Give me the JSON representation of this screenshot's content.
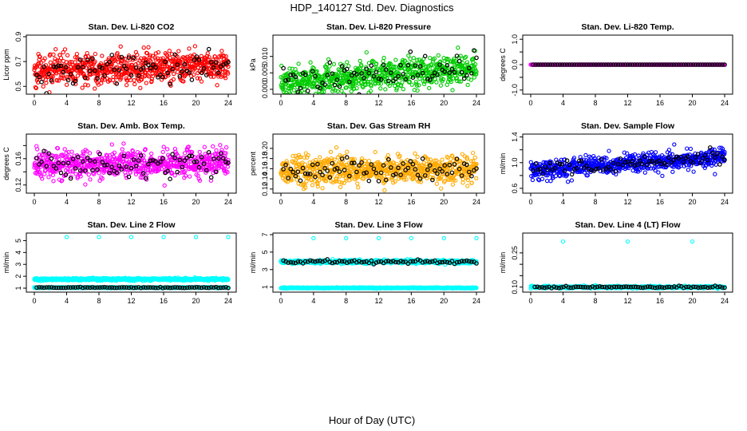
{
  "figure": {
    "title": "HDP_140127  Std. Dev. Diagnostics",
    "xlabel": "Hour of Day (UTC)"
  },
  "chart_data": [
    {
      "type": "scatter",
      "title": "Stan. Dev. Li-820 CO2",
      "ylabel": "Licor ppm",
      "xlim": [
        0,
        24
      ],
      "ylim": [
        0.45,
        0.9
      ],
      "xticks": [
        "0",
        "4",
        "8",
        "12",
        "16",
        "20",
        "24"
      ],
      "yticks": [
        0.5,
        0.7,
        0.9
      ],
      "ytick_labels": [
        "0.5",
        "0.7",
        "0.9"
      ],
      "colors": {
        "main": "#ff0000",
        "black": "#000000"
      },
      "series_gen": {
        "kind": "band",
        "start": 0.62,
        "end": 0.67,
        "spread": 0.06,
        "outlier": 0.12,
        "n": 720,
        "black_n": 80
      }
    },
    {
      "type": "scatter",
      "title": "Stan. Dev. Li-820 Pressure",
      "ylabel": "kPa",
      "xlim": [
        0,
        24
      ],
      "ylim": [
        -0.001,
        0.016
      ],
      "xticks": [
        "0",
        "4",
        "8",
        "12",
        "16",
        "20",
        "24"
      ],
      "yticks": [
        0.0,
        0.005,
        0.01
      ],
      "ytick_labels": [
        "0.000",
        "0.005",
        "0.010"
      ],
      "colors": {
        "main": "#00cc00",
        "black": "#000000"
      },
      "series_gen": {
        "kind": "band",
        "start": 0.002,
        "end": 0.0065,
        "spread": 0.0022,
        "outlier": 0.004,
        "n": 720,
        "black_n": 80
      }
    },
    {
      "type": "scatter",
      "title": "Stan. Dev. Li-820 Temp.",
      "ylabel": "degrees C",
      "xlim": [
        0,
        24
      ],
      "ylim": [
        -1.1,
        1.1
      ],
      "xticks": [
        "0",
        "4",
        "8",
        "12",
        "16",
        "20",
        "24"
      ],
      "yticks": [
        -1.0,
        -0.5,
        0.0,
        0.5,
        1.0
      ],
      "ytick_labels": [
        "-1.0",
        "",
        "0.0",
        "",
        "1.0"
      ],
      "colors": {
        "main": "#ff00ff",
        "black": "#000000"
      },
      "series_gen": {
        "kind": "flat",
        "value": 0.0,
        "n": 720,
        "black_n": 80
      }
    },
    {
      "type": "scatter",
      "title": "Stan. Dev. Amb. Box Temp.",
      "ylabel": "degrees C",
      "xlim": [
        0,
        24
      ],
      "ylim": [
        0.11,
        0.195
      ],
      "xticks": [
        "0",
        "4",
        "8",
        "12",
        "16",
        "20",
        "24"
      ],
      "yticks": [
        0.12,
        0.14,
        0.16,
        0.18
      ],
      "ytick_labels": [
        "0.12",
        "",
        "0.16",
        ""
      ],
      "colors": {
        "main": "#ff00ff",
        "black": "#000000"
      },
      "series_gen": {
        "kind": "band",
        "start": 0.152,
        "end": 0.153,
        "spread": 0.011,
        "outlier": 0.02,
        "n": 720,
        "black_n": 80
      }
    },
    {
      "type": "scatter",
      "title": "Stan. Dev. Gas Stream RH",
      "ylabel": "percent",
      "xlim": [
        0,
        24
      ],
      "ylim": [
        0.115,
        0.225
      ],
      "xticks": [
        "0",
        "4",
        "8",
        "12",
        "16",
        "20",
        "24"
      ],
      "yticks": [
        0.12,
        0.14,
        0.16,
        0.18,
        0.2
      ],
      "ytick_labels": [
        "0.12",
        "0.14",
        "0.16",
        "0.18",
        "0.20"
      ],
      "colors": {
        "main": "#ffaa00",
        "black": "#000000"
      },
      "series_gen": {
        "kind": "band",
        "start": 0.158,
        "end": 0.158,
        "spread": 0.013,
        "outlier": 0.03,
        "n": 720,
        "black_n": 80
      }
    },
    {
      "type": "scatter",
      "title": "Stan. Dev. Sample Flow",
      "ylabel": "ml/min",
      "xlim": [
        0,
        24
      ],
      "ylim": [
        0.55,
        1.42
      ],
      "xticks": [
        "0",
        "4",
        "8",
        "12",
        "16",
        "20",
        "24"
      ],
      "yticks": [
        0.6,
        0.8,
        1.0,
        1.2,
        1.4
      ],
      "ytick_labels": [
        "0.6",
        "",
        "1.0",
        "",
        "1.4"
      ],
      "colors": {
        "main": "#0000ff",
        "black": "#000000"
      },
      "series_gen": {
        "kind": "band",
        "start": 0.9,
        "end": 1.08,
        "spread": 0.07,
        "outlier": 0.2,
        "n": 720,
        "black_n": 80
      }
    },
    {
      "type": "scatter",
      "title": "Stan. Dev. Line 2 Flow",
      "ylabel": "ml/min",
      "xlim": [
        0,
        24
      ],
      "ylim": [
        0.8,
        5.5
      ],
      "xticks": [
        "0",
        "4",
        "8",
        "12",
        "16",
        "20",
        "24"
      ],
      "yticks": [
        1,
        2,
        3,
        4,
        5
      ],
      "ytick_labels": [
        "1",
        "2",
        "3",
        "4",
        "5"
      ],
      "colors": {
        "main": "#00ffff",
        "black": "#000000"
      },
      "series_gen": {
        "kind": "twoline",
        "upper": 1.75,
        "upper_spread": 0.1,
        "lower": 1.05,
        "lower_spread": 0.04,
        "spikes": [
          4,
          8,
          12,
          16,
          20,
          24
        ],
        "spike_value": 5.3,
        "n": 720,
        "black_n": 80
      }
    },
    {
      "type": "scatter",
      "title": "Stan. Dev. Line 3 Flow",
      "ylabel": "ml/min",
      "xlim": [
        0,
        24
      ],
      "ylim": [
        0.6,
        7.0
      ],
      "xticks": [
        "0",
        "4",
        "8",
        "12",
        "16",
        "20",
        "24"
      ],
      "yticks": [
        1,
        3,
        5,
        7
      ],
      "ytick_labels": [
        "1",
        "3",
        "5",
        "7"
      ],
      "colors": {
        "main": "#00ffff",
        "black": "#000000"
      },
      "series_gen": {
        "kind": "twoline",
        "upper": 3.9,
        "upper_spread": 0.2,
        "lower": 0.9,
        "lower_spread": 0.06,
        "spikes": [
          4,
          8,
          12,
          16,
          20,
          24
        ],
        "spike_value": 6.6,
        "black_on": "upper",
        "n": 720,
        "black_n": 80
      }
    },
    {
      "type": "scatter",
      "title": "Stan. Dev. Line 4 (LT) Flow",
      "ylabel": "ml/min",
      "xlim": [
        0,
        24
      ],
      "ylim": [
        0.085,
        0.33
      ],
      "xticks": [
        "0",
        "4",
        "8",
        "12",
        "16",
        "20",
        "24"
      ],
      "yticks": [
        0.1,
        0.15,
        0.2,
        0.25
      ],
      "ytick_labels": [
        "0.10",
        "",
        "",
        "0.25"
      ],
      "colors": {
        "main": "#00ffff",
        "black": "#000000"
      },
      "series_gen": {
        "kind": "flatband",
        "value": 0.1,
        "spread": 0.004,
        "spikes": [
          4,
          12,
          20
        ],
        "spike_value": 0.3,
        "n": 720,
        "black_n": 80
      }
    }
  ]
}
